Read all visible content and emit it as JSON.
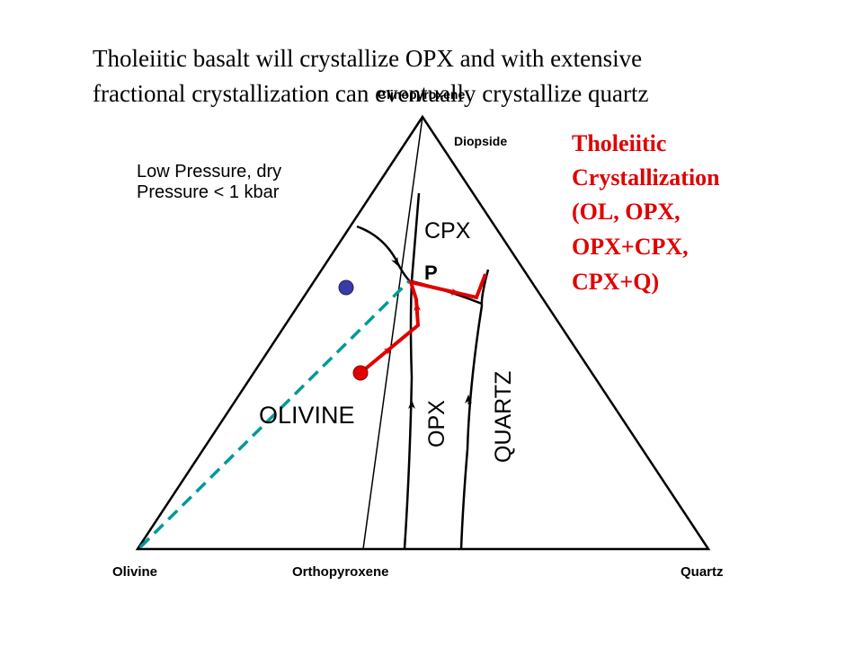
{
  "title": {
    "lines": [
      "Tholeiitic basalt will crystallize OPX and with extensive",
      "fractional crystallization can eventually crystallize quartz"
    ]
  },
  "diagram": {
    "apex_label": "Clinopyroxene",
    "apex_sublabel": "Diopside",
    "conditions": [
      "Low Pressure, dry",
      "Pressure < 1 kbar"
    ],
    "fields": {
      "cpx": "CPX",
      "olivine": "OLIVINE",
      "opx": "OPX",
      "quartz": "QUARTZ"
    },
    "point": "P",
    "corners": [
      "Olivine",
      "Orthopyroxene",
      "Quartz"
    ]
  },
  "annotation": {
    "lines": [
      "Tholeiitic",
      "Crystallization",
      "(OL, OPX,",
      "OPX+CPX,",
      "CPX+Q)"
    ]
  }
}
